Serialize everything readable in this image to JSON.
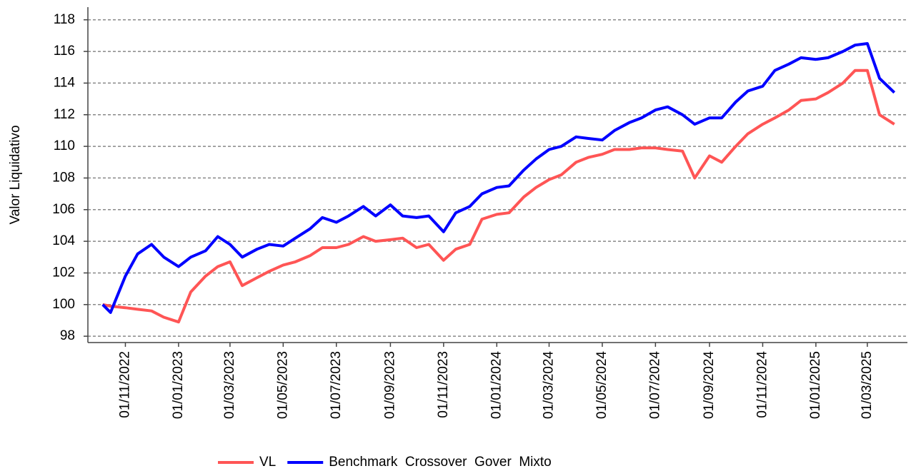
{
  "chart_data": {
    "type": "line",
    "y_label": "Valor Liquidativo",
    "x": [
      "06/10/2022",
      "15/10/2022",
      "01/11/2022",
      "15/11/2022",
      "01/12/2022",
      "15/12/2022",
      "01/01/2023",
      "15/01/2023",
      "01/02/2023",
      "15/02/2023",
      "01/03/2023",
      "15/03/2023",
      "01/04/2023",
      "15/04/2023",
      "01/05/2023",
      "15/05/2023",
      "01/06/2023",
      "15/06/2023",
      "01/07/2023",
      "15/07/2023",
      "01/08/2023",
      "15/08/2023",
      "01/09/2023",
      "15/09/2023",
      "01/10/2023",
      "15/10/2023",
      "01/11/2023",
      "15/11/2023",
      "01/12/2023",
      "15/12/2023",
      "01/01/2024",
      "15/01/2024",
      "01/02/2024",
      "15/02/2024",
      "01/03/2024",
      "15/03/2024",
      "01/04/2024",
      "15/04/2024",
      "01/05/2024",
      "15/05/2024",
      "01/06/2024",
      "15/06/2024",
      "01/07/2024",
      "15/07/2024",
      "01/08/2024",
      "15/08/2024",
      "01/09/2024",
      "15/09/2024",
      "01/10/2024",
      "15/10/2024",
      "01/11/2024",
      "15/11/2024",
      "01/12/2024",
      "15/12/2024",
      "01/01/2025",
      "15/01/2025",
      "01/02/2025",
      "15/02/2025",
      "01/03/2025",
      "15/03/2025",
      "01/04/2025"
    ],
    "series": [
      {
        "name": "VL",
        "color": "#ff5555",
        "values": [
          100,
          99.9,
          99.8,
          99.7,
          99.6,
          99.2,
          98.9,
          100.8,
          101.8,
          102.4,
          102.7,
          101.2,
          101.7,
          102.1,
          102.5,
          102.7,
          103.1,
          103.6,
          103.6,
          103.8,
          104.3,
          104.0,
          104.1,
          104.2,
          103.6,
          103.8,
          102.8,
          103.5,
          103.8,
          105.4,
          105.7,
          105.8,
          106.8,
          107.4,
          107.9,
          108.2,
          109.0,
          109.3,
          109.5,
          109.8,
          109.8,
          109.9,
          109.9,
          109.8,
          109.7,
          108.0,
          109.4,
          109.0,
          110.0,
          110.8,
          111.4,
          111.8,
          112.3,
          112.9,
          113.0,
          113.4,
          114.0,
          114.8,
          114.8,
          112.0,
          111.4
        ]
      },
      {
        "name": "Benchmark  Crossover  Gover  Mixto",
        "color": "#0000ff",
        "values": [
          100,
          99.5,
          101.8,
          103.2,
          103.8,
          103.0,
          102.4,
          103.0,
          103.4,
          104.3,
          103.8,
          103.0,
          103.5,
          103.8,
          103.7,
          104.2,
          104.8,
          105.5,
          105.2,
          105.6,
          106.2,
          105.6,
          106.3,
          105.6,
          105.5,
          105.6,
          104.6,
          105.8,
          106.2,
          107.0,
          107.4,
          107.5,
          108.5,
          109.2,
          109.8,
          110.0,
          110.6,
          110.5,
          110.4,
          111.0,
          111.5,
          111.8,
          112.3,
          112.5,
          112.0,
          111.4,
          111.8,
          111.8,
          112.8,
          113.5,
          113.8,
          114.8,
          115.2,
          115.6,
          115.5,
          115.6,
          116.0,
          116.4,
          116.5,
          114.3,
          113.4
        ]
      }
    ],
    "xlim": [
      "19/09/2022",
      "16/04/2025"
    ],
    "xticks": [
      "01/11/2022",
      "01/01/2023",
      "01/03/2023",
      "01/05/2023",
      "01/07/2023",
      "01/09/2023",
      "01/11/2023",
      "01/01/2024",
      "01/03/2024",
      "01/05/2024",
      "01/07/2024",
      "01/09/2024",
      "01/11/2024",
      "01/01/2025",
      "01/03/2025"
    ],
    "ylim": [
      97.6,
      118.8
    ],
    "yticks": [
      98,
      100,
      102,
      104,
      106,
      108,
      110,
      112,
      114,
      116,
      118
    ],
    "grid": true,
    "legend": "bottom"
  }
}
